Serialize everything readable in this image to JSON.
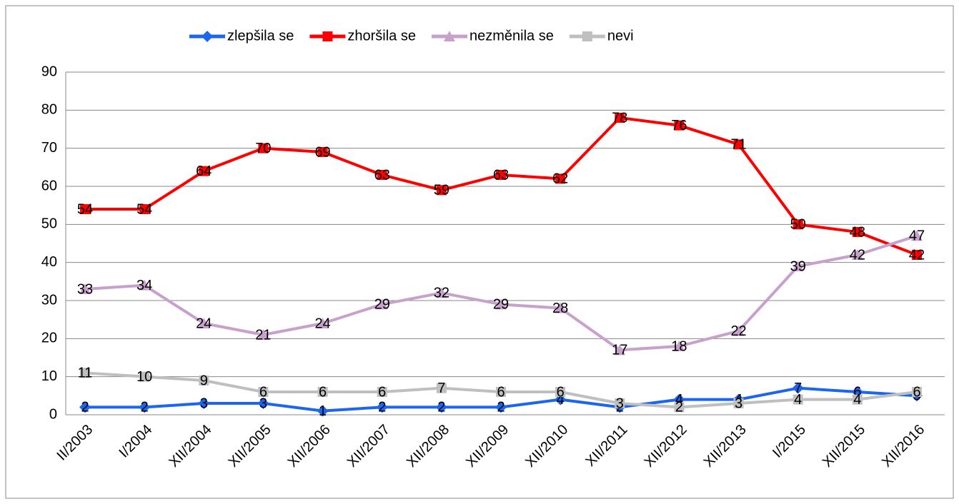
{
  "chart_data": {
    "type": "line",
    "categories": [
      "II/2003",
      "I/2004",
      "XII/2004",
      "XII/2005",
      "XII/2006",
      "XII/2007",
      "XII/2008",
      "XII/2009",
      "XII/2010",
      "XII/2011",
      "XII/2012",
      "XII/2013",
      "I/2015",
      "XII/2015",
      "XII/2016"
    ],
    "series": [
      {
        "name": "zlepšila se",
        "color": "#1a66f0",
        "marker": "diamond",
        "values": [
          2,
          2,
          3,
          3,
          1,
          2,
          2,
          2,
          4,
          2,
          4,
          4,
          7,
          6,
          5
        ]
      },
      {
        "name": "zhoršila se",
        "color": "#ff0000",
        "marker": "square",
        "values": [
          54,
          54,
          64,
          70,
          69,
          63,
          59,
          63,
          62,
          78,
          76,
          71,
          50,
          48,
          42
        ]
      },
      {
        "name": "nezměnila se",
        "color": "#c8a0cc",
        "marker": "triangle",
        "values": [
          33,
          34,
          24,
          21,
          24,
          29,
          32,
          29,
          28,
          17,
          18,
          22,
          39,
          42,
          47
        ]
      },
      {
        "name": "nevi",
        "color": "#bfbfbf",
        "marker": "square",
        "values": [
          11,
          10,
          9,
          6,
          6,
          6,
          7,
          6,
          6,
          3,
          2,
          3,
          4,
          4,
          6
        ]
      }
    ],
    "ylim": [
      0,
      90
    ],
    "yticks": [
      0,
      10,
      20,
      30,
      40,
      50,
      60,
      70,
      80,
      90
    ],
    "grid": true,
    "legend": "top"
  }
}
